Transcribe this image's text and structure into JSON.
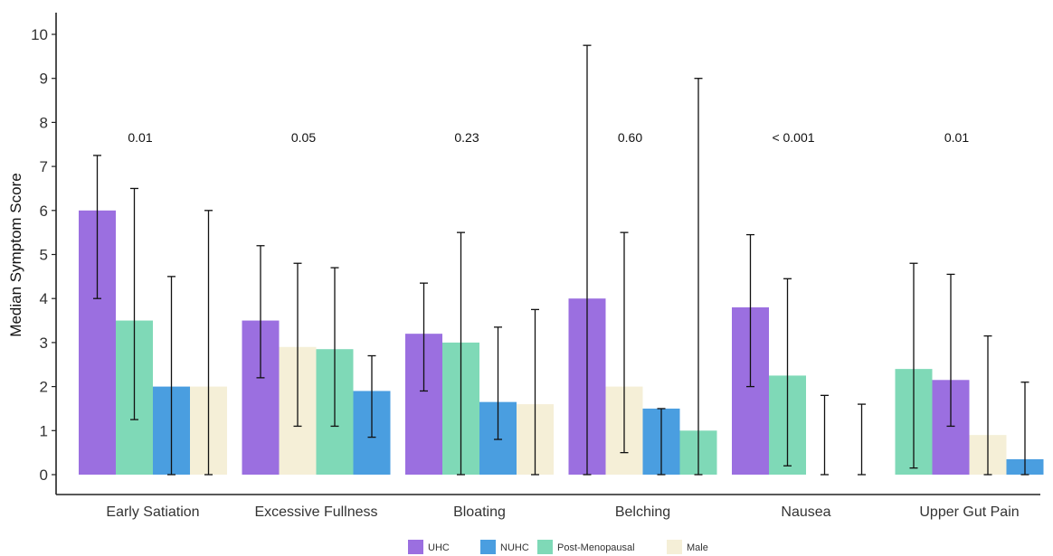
{
  "chart_data": {
    "type": "bar",
    "title": "",
    "xlabel": "",
    "ylabel": "Median Symptom Score",
    "ylim": [
      0,
      10.6
    ],
    "yticks": [
      0,
      1,
      2,
      3,
      4,
      5,
      6,
      7,
      8,
      9,
      10
    ],
    "grid": false,
    "legend_position": "bottom",
    "colors": {
      "UHC": "#9b6fe0",
      "NUHC": "#4a9ee0",
      "Post-Menopausal": "#7fd9b7",
      "Male": "#f5efd7"
    },
    "legend": [
      "UHC",
      "NUHC",
      "Post-Menopausal",
      "Male"
    ],
    "groups": [
      {
        "category": "Early Satiation",
        "p_value": "0.01",
        "bars": [
          {
            "series": "UHC",
            "value": 6.0,
            "err_low": 4.0,
            "err_high": 7.25
          },
          {
            "series": "Post-Menopausal",
            "value": 3.5,
            "err_low": 1.25,
            "err_high": 6.5
          },
          {
            "series": "NUHC",
            "value": 2.0,
            "err_low": 0.0,
            "err_high": 4.5
          },
          {
            "series": "Male",
            "value": 2.0,
            "err_low": 0.0,
            "err_high": 6.0
          }
        ]
      },
      {
        "category": "Excessive Fullness",
        "p_value": "0.05",
        "bars": [
          {
            "series": "UHC",
            "value": 3.5,
            "err_low": 2.2,
            "err_high": 5.2
          },
          {
            "series": "Male",
            "value": 2.9,
            "err_low": 1.1,
            "err_high": 4.8
          },
          {
            "series": "Post-Menopausal",
            "value": 2.85,
            "err_low": 1.1,
            "err_high": 4.7
          },
          {
            "series": "NUHC",
            "value": 1.9,
            "err_low": 0.85,
            "err_high": 2.7
          }
        ]
      },
      {
        "category": "Bloating",
        "p_value": "0.23",
        "bars": [
          {
            "series": "UHC",
            "value": 3.2,
            "err_low": 1.9,
            "err_high": 4.35
          },
          {
            "series": "Post-Menopausal",
            "value": 3.0,
            "err_low": 0.0,
            "err_high": 5.5
          },
          {
            "series": "NUHC",
            "value": 1.65,
            "err_low": 0.8,
            "err_high": 3.35
          },
          {
            "series": "Male",
            "value": 1.6,
            "err_low": 0.0,
            "err_high": 3.75
          }
        ]
      },
      {
        "category": "Belching",
        "p_value": "0.60",
        "bars": [
          {
            "series": "UHC",
            "value": 4.0,
            "err_low": 0.0,
            "err_high": 9.75
          },
          {
            "series": "Male",
            "value": 2.0,
            "err_low": 0.5,
            "err_high": 5.5
          },
          {
            "series": "NUHC",
            "value": 1.5,
            "err_low": 0.0,
            "err_high": 1.5
          },
          {
            "series": "Post-Menopausal",
            "value": 1.0,
            "err_low": 0.0,
            "err_high": 9.0
          }
        ]
      },
      {
        "category": "Nausea",
        "p_value": "< 0.001",
        "bars": [
          {
            "series": "UHC",
            "value": 3.8,
            "err_low": 2.0,
            "err_high": 5.45
          },
          {
            "series": "Post-Menopausal",
            "value": 2.25,
            "err_low": 0.2,
            "err_high": 4.45
          },
          {
            "series": "NUHC",
            "value": 0.0,
            "err_low": 0.0,
            "err_high": 1.8
          },
          {
            "series": "Male",
            "value": 0.0,
            "err_low": 0.0,
            "err_high": 1.6
          }
        ]
      },
      {
        "category": "Upper Gut Pain",
        "p_value": "0.01",
        "bars": [
          {
            "series": "Post-Menopausal",
            "value": 2.4,
            "err_low": 0.15,
            "err_high": 4.8
          },
          {
            "series": "UHC",
            "value": 2.15,
            "err_low": 1.1,
            "err_high": 4.55
          },
          {
            "series": "Male",
            "value": 0.9,
            "err_low": 0.0,
            "err_high": 3.15
          },
          {
            "series": "NUHC",
            "value": 0.35,
            "err_low": 0.0,
            "err_high": 2.1
          }
        ]
      }
    ]
  }
}
